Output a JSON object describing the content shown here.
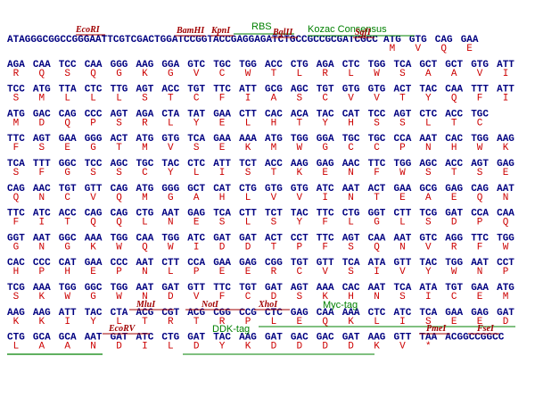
{
  "sequence": {
    "leader": "ATAGGGCGGCCGGGAATTCGTCGACTGGATCCGGTACCGAGGAGATCTGCCGCCGCGATCGCC",
    "rows": [
      {
        "codons": [
          "ATG",
          "GTG",
          "CAG",
          "GAA"
        ],
        "aa": [
          "M",
          "V",
          "Q",
          "E"
        ]
      },
      {
        "codons": [
          "AGA",
          "CAA",
          "TCC",
          "CAA",
          "GGG",
          "AAG",
          "GGA",
          "GTC",
          "TGC",
          "TGG",
          "ACC",
          "CTG",
          "AGA",
          "CTC",
          "TGG",
          "TCA",
          "GCT",
          "GCT",
          "GTG",
          "ATT"
        ],
        "aa": [
          "R",
          "Q",
          "S",
          "Q",
          "G",
          "K",
          "G",
          "V",
          "C",
          "W",
          "T",
          "L",
          "R",
          "L",
          "W",
          "S",
          "A",
          "A",
          "V",
          "I"
        ]
      },
      {
        "codons": [
          "TCC",
          "ATG",
          "TTA",
          "CTC",
          "TTG",
          "AGT",
          "ACC",
          "TGT",
          "TTC",
          "ATT",
          "GCG",
          "AGC",
          "TGT",
          "GTG",
          "GTG",
          "ACT",
          "TAC",
          "CAA",
          "TTT",
          "ATT"
        ],
        "aa": [
          "S",
          "M",
          "L",
          "L",
          "L",
          "S",
          "T",
          "C",
          "F",
          "I",
          "A",
          "S",
          "C",
          "V",
          "V",
          "T",
          "Y",
          "Q",
          "F",
          "I"
        ]
      },
      {
        "codons": [
          "ATG",
          "GAC",
          "CAG",
          "CCC",
          "AGT",
          "AGA",
          "CTA",
          "TAT",
          "GAA",
          "CTT",
          "CAC",
          "ACA",
          "TAC",
          "CAT",
          "TCC",
          "AGT",
          "CTC",
          "ACC",
          "TGC"
        ],
        "aa": [
          "M",
          "D",
          "Q",
          "P",
          "S",
          "R",
          "L",
          "Y",
          "E",
          "L",
          "H",
          "T",
          "Y",
          "H",
          "S",
          "S",
          "L",
          "T",
          "C"
        ]
      },
      {
        "codons": [
          "TTC",
          "AGT",
          "GAA",
          "GGG",
          "ACT",
          "ATG",
          "GTG",
          "TCA",
          "GAA",
          "AAA",
          "ATG",
          "TGG",
          "GGA",
          "TGC",
          "TGC",
          "CCA",
          "AAT",
          "CAC",
          "TGG",
          "AAG"
        ],
        "aa": [
          "F",
          "S",
          "E",
          "G",
          "T",
          "M",
          "V",
          "S",
          "E",
          "K",
          "M",
          "W",
          "G",
          "C",
          "C",
          "P",
          "N",
          "H",
          "W",
          "K"
        ]
      },
      {
        "codons": [
          "TCA",
          "TTT",
          "GGC",
          "TCC",
          "AGC",
          "TGC",
          "TAC",
          "CTC",
          "ATT",
          "TCT",
          "ACC",
          "AAG",
          "GAG",
          "AAC",
          "TTC",
          "TGG",
          "AGC",
          "ACC",
          "AGT",
          "GAG"
        ],
        "aa": [
          "S",
          "F",
          "G",
          "S",
          "S",
          "C",
          "Y",
          "L",
          "I",
          "S",
          "T",
          "K",
          "E",
          "N",
          "F",
          "W",
          "S",
          "T",
          "S",
          "E"
        ]
      },
      {
        "codons": [
          "CAG",
          "AAC",
          "TGT",
          "GTT",
          "CAG",
          "ATG",
          "GGG",
          "GCT",
          "CAT",
          "CTG",
          "GTG",
          "GTG",
          "ATC",
          "AAT",
          "ACT",
          "GAA",
          "GCG",
          "GAG",
          "CAG",
          "AAT"
        ],
        "aa": [
          "Q",
          "N",
          "C",
          "V",
          "Q",
          "M",
          "G",
          "A",
          "H",
          "L",
          "V",
          "V",
          "I",
          "N",
          "T",
          "E",
          "A",
          "E",
          "Q",
          "N"
        ]
      },
      {
        "codons": [
          "TTC",
          "ATC",
          "ACC",
          "CAG",
          "CAG",
          "CTG",
          "AAT",
          "GAG",
          "TCA",
          "CTT",
          "TCT",
          "TAC",
          "TTC",
          "CTG",
          "GGT",
          "CTT",
          "TCG",
          "GAT",
          "CCA",
          "CAA"
        ],
        "aa": [
          "F",
          "I",
          "T",
          "Q",
          "Q",
          "L",
          "N",
          "E",
          "S",
          "L",
          "S",
          "Y",
          "F",
          "L",
          "G",
          "L",
          "S",
          "D",
          "P",
          "Q"
        ]
      },
      {
        "codons": [
          "GGT",
          "AAT",
          "GGC",
          "AAA",
          "TGG",
          "CAA",
          "TGG",
          "ATC",
          "GAT",
          "GAT",
          "ACT",
          "CCT",
          "TTC",
          "AGT",
          "CAA",
          "AAT",
          "GTC",
          "AGG",
          "TTC",
          "TGG"
        ],
        "aa": [
          "G",
          "N",
          "G",
          "K",
          "W",
          "Q",
          "W",
          "I",
          "D",
          "D",
          "T",
          "P",
          "F",
          "S",
          "Q",
          "N",
          "V",
          "R",
          "F",
          "W"
        ]
      },
      {
        "codons": [
          "CAC",
          "CCC",
          "CAT",
          "GAA",
          "CCC",
          "AAT",
          "CTT",
          "CCA",
          "GAA",
          "GAG",
          "CGG",
          "TGT",
          "GTT",
          "TCA",
          "ATA",
          "GTT",
          "TAC",
          "TGG",
          "AAT",
          "CCT"
        ],
        "aa": [
          "H",
          "P",
          "H",
          "E",
          "P",
          "N",
          "L",
          "P",
          "E",
          "E",
          "R",
          "C",
          "V",
          "S",
          "I",
          "V",
          "Y",
          "W",
          "N",
          "P"
        ]
      },
      {
        "codons": [
          "TCG",
          "AAA",
          "TGG",
          "GGC",
          "TGG",
          "AAT",
          "GAT",
          "GTT",
          "TTC",
          "TGT",
          "GAT",
          "AGT",
          "AAA",
          "CAC",
          "AAT",
          "TCA",
          "ATA",
          "TGT",
          "GAA",
          "ATG"
        ],
        "aa": [
          "S",
          "K",
          "W",
          "G",
          "W",
          "N",
          "D",
          "V",
          "F",
          "C",
          "D",
          "S",
          "K",
          "H",
          "N",
          "S",
          "I",
          "C",
          "E",
          "M"
        ]
      },
      {
        "codons": [
          "AAG",
          "AAG",
          "ATT",
          "TAC",
          "CTA",
          "ACG",
          "CGT",
          "ACG",
          "CGG",
          "CCG",
          "CTC",
          "GAG",
          "CAA",
          "AAA",
          "CTC",
          "ATC",
          "TCA",
          "GAA",
          "GAG",
          "GAT"
        ],
        "aa": [
          "K",
          "K",
          "I",
          "Y",
          "L",
          "T",
          "R",
          "T",
          "R",
          "P",
          "L",
          "E",
          "Q",
          "K",
          "L",
          "I",
          "S",
          "E",
          "E",
          "D"
        ]
      },
      {
        "codons": [
          "CTG",
          "GCA",
          "GCA",
          "AAT",
          "GAT",
          "ATC",
          "CTG",
          "GAT",
          "TAC",
          "AAG",
          "GAT",
          "GAC",
          "GAC",
          "GAT",
          "AAG",
          "GTT",
          "TAA"
        ],
        "aa": [
          "L",
          "A",
          "A",
          "N",
          "D",
          "I",
          "L",
          "D",
          "Y",
          "K",
          "D",
          "D",
          "D",
          "D",
          "K",
          "V",
          "*"
        ]
      }
    ],
    "trailer": "ACGGCCGGCC"
  },
  "annotations": [
    "EcoRI",
    "BamHI",
    "KpnI",
    "RBS",
    "BglII",
    "Kozac Consensus",
    "SgfI",
    "MluI",
    "NotI",
    "XhoI",
    "Myc-tag",
    "EcoRV",
    "DDK-tag",
    "PmeI",
    "FseI"
  ]
}
